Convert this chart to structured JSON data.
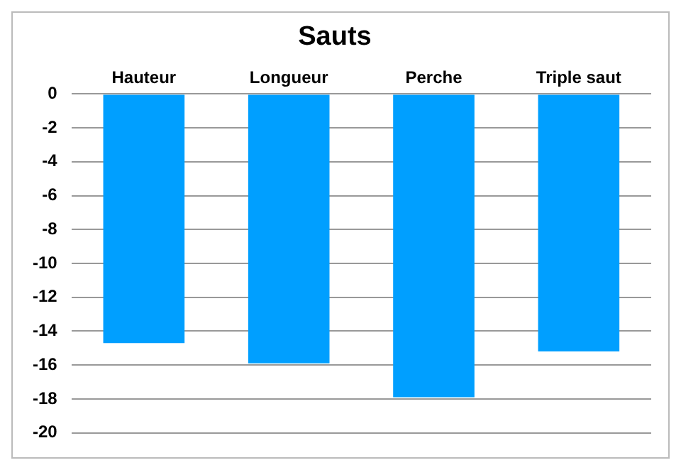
{
  "chart_data": {
    "type": "bar",
    "title": "Sauts",
    "categories": [
      "Hauteur",
      "Longueur",
      "Perche",
      "Triple saut"
    ],
    "values": [
      -14.7,
      -15.9,
      -17.9,
      -15.2
    ],
    "color": "#009fff",
    "ylim": [
      -20,
      0
    ],
    "yticks": [
      0,
      -2,
      -4,
      -6,
      -8,
      -10,
      -12,
      -14,
      -16,
      -18,
      -20
    ],
    "grid": "y",
    "legend": false
  }
}
